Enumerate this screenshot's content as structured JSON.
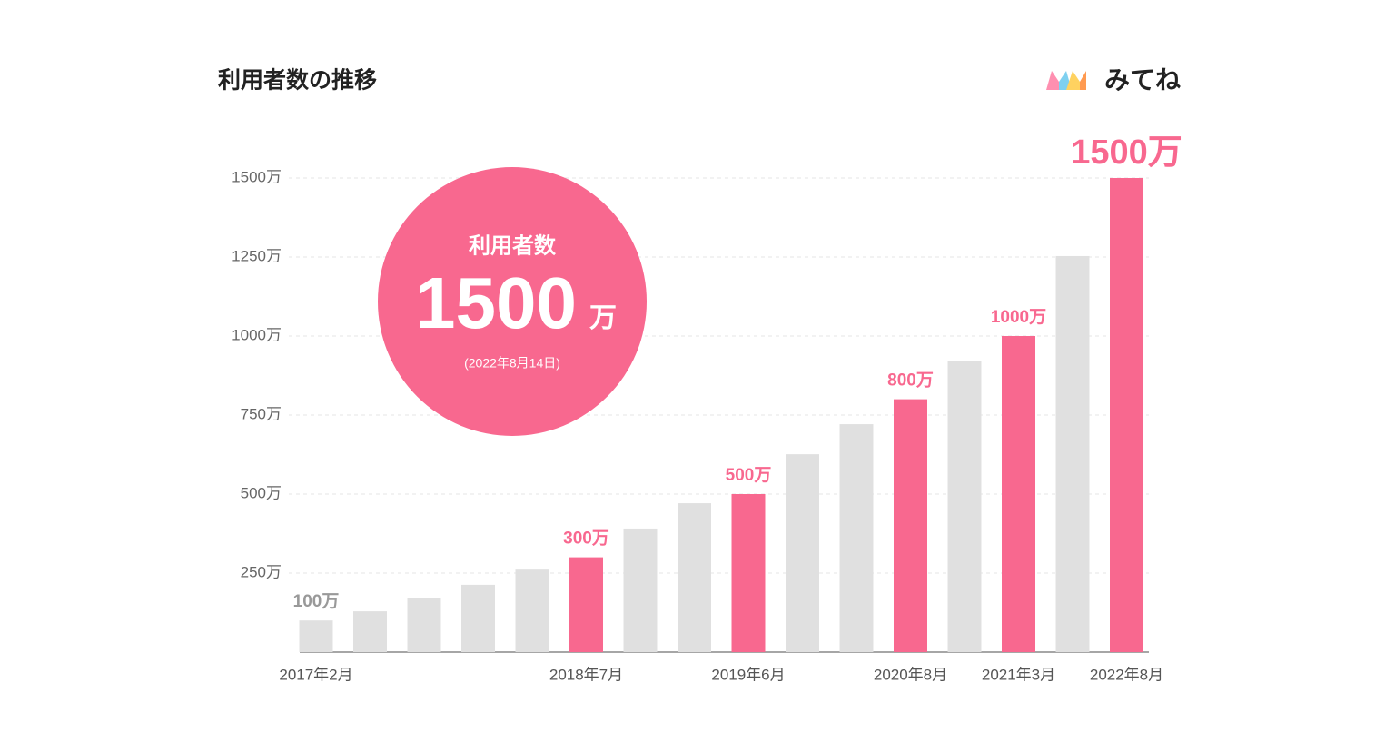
{
  "chart_data": {
    "type": "bar",
    "title": "利用者数の推移",
    "brand": "みてね",
    "badge": {
      "heading": "利用者数",
      "value": 1500,
      "unit": "万",
      "date": "(2022年8月14日)"
    },
    "categories": [
      "2017年2月",
      null,
      null,
      null,
      null,
      "2018年7月",
      null,
      null,
      "2019年6月",
      null,
      null,
      "2020年8月",
      null,
      "2021年3月",
      null,
      "2022年8月"
    ],
    "values": [
      100,
      129,
      170,
      213,
      261,
      300,
      391,
      471,
      500,
      626,
      721,
      800,
      922,
      1000,
      1253,
      1500
    ],
    "value_labels": [
      "100万",
      null,
      null,
      null,
      null,
      "300万",
      null,
      null,
      "500万",
      null,
      null,
      "800万",
      null,
      "1000万",
      null,
      "1500万"
    ],
    "colors": [
      "#e0e0e0",
      "#e0e0e0",
      "#e0e0e0",
      "#e0e0e0",
      "#e0e0e0",
      "#f8688f",
      "#e0e0e0",
      "#e0e0e0",
      "#f8688f",
      "#e0e0e0",
      "#e0e0e0",
      "#f8688f",
      "#e0e0e0",
      "#f8688f",
      "#e0e0e0",
      "#f8688f"
    ],
    "ylim": [
      0,
      1500
    ],
    "yticks": [
      {
        "value": 250,
        "label": "250万"
      },
      {
        "value": 500,
        "label": "500万"
      },
      {
        "value": 750,
        "label": "750万"
      },
      {
        "value": 1000,
        "label": "1000万"
      },
      {
        "value": 1250,
        "label": "1250万"
      },
      {
        "value": 1500,
        "label": "1500万"
      }
    ],
    "grid": true
  }
}
